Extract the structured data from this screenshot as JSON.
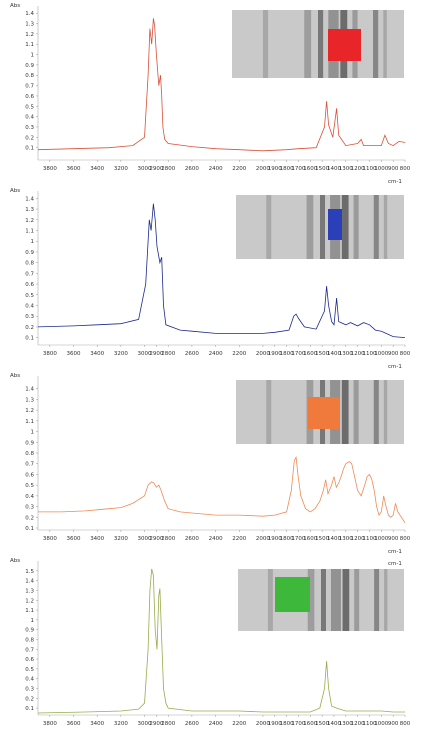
{
  "chart_data": [
    {
      "type": "line",
      "ylabel": "Abs",
      "xunit": "cm-1",
      "xlim": [
        3900,
        800
      ],
      "ylim": [
        0.0,
        1.45
      ],
      "yticks": [
        "0.1",
        "0.2",
        "0.3",
        "0.4",
        "0.5",
        "0.6",
        "0.7",
        "0.8",
        "0.9",
        "1",
        "1.1",
        "1.2",
        "1.3",
        "1.4"
      ],
      "xticks": [
        "3800",
        "3600",
        "3400",
        "3200",
        "3000",
        "2900",
        "2800",
        "2600",
        "2400",
        "2200",
        "2000",
        "1900",
        "1800",
        "1700",
        "1600",
        "1500",
        "1400",
        "1300",
        "1200",
        "1100",
        "1000",
        "900",
        "800"
      ],
      "series": [
        {
          "color": "#d9503a",
          "points": [
            [
              3900,
              0.08
            ],
            [
              3600,
              0.09
            ],
            [
              3300,
              0.1
            ],
            [
              3100,
              0.12
            ],
            [
              3000,
              0.2
            ],
            [
              2970,
              0.8
            ],
            [
              2955,
              1.25
            ],
            [
              2940,
              1.1
            ],
            [
              2925,
              1.35
            ],
            [
              2915,
              1.28
            ],
            [
              2900,
              1.0
            ],
            [
              2880,
              0.7
            ],
            [
              2865,
              0.8
            ],
            [
              2855,
              0.6
            ],
            [
              2845,
              0.3
            ],
            [
              2830,
              0.18
            ],
            [
              2800,
              0.14
            ],
            [
              2600,
              0.11
            ],
            [
              2400,
              0.09
            ],
            [
              2200,
              0.08
            ],
            [
              2000,
              0.07
            ],
            [
              1800,
              0.08
            ],
            [
              1700,
              0.09
            ],
            [
              1550,
              0.1
            ],
            [
              1480,
              0.3
            ],
            [
              1462,
              0.55
            ],
            [
              1445,
              0.32
            ],
            [
              1410,
              0.2
            ],
            [
              1378,
              0.48
            ],
            [
              1360,
              0.22
            ],
            [
              1300,
              0.12
            ],
            [
              1200,
              0.14
            ],
            [
              1170,
              0.18
            ],
            [
              1150,
              0.12
            ],
            [
              1000,
              0.12
            ],
            [
              970,
              0.22
            ],
            [
              940,
              0.14
            ],
            [
              900,
              0.12
            ],
            [
              850,
              0.16
            ],
            [
              800,
              0.15
            ]
          ]
        }
      ],
      "inset": {
        "marker_color": "#e8262a"
      }
    },
    {
      "type": "line",
      "ylabel": "Abs",
      "xunit": "cm-1",
      "xlim": [
        3900,
        800
      ],
      "ylim": [
        0.05,
        1.45
      ],
      "yticks": [
        "0.1",
        "0.2",
        "0.3",
        "0.4",
        "0.5",
        "0.6",
        "0.7",
        "0.8",
        "0.9",
        "1",
        "1.1",
        "1.2",
        "1.3",
        "1.4"
      ],
      "xticks": [
        "3800",
        "3600",
        "3400",
        "3200",
        "3000",
        "2900",
        "2800",
        "2600",
        "2400",
        "2200",
        "2000",
        "1900",
        "1800",
        "1700",
        "1600",
        "1500",
        "1400",
        "1300",
        "1200",
        "1100",
        "1000",
        "900",
        "800"
      ],
      "series": [
        {
          "color": "#1c2a8c",
          "points": [
            [
              3900,
              0.2
            ],
            [
              3600,
              0.21
            ],
            [
              3400,
              0.22
            ],
            [
              3200,
              0.23
            ],
            [
              3050,
              0.27
            ],
            [
              2990,
              0.6
            ],
            [
              2960,
              1.2
            ],
            [
              2945,
              1.1
            ],
            [
              2925,
              1.35
            ],
            [
              2910,
              1.2
            ],
            [
              2895,
              0.95
            ],
            [
              2870,
              0.8
            ],
            [
              2855,
              0.85
            ],
            [
              2840,
              0.4
            ],
            [
              2820,
              0.22
            ],
            [
              2700,
              0.17
            ],
            [
              2600,
              0.16
            ],
            [
              2400,
              0.14
            ],
            [
              2200,
              0.14
            ],
            [
              2000,
              0.14
            ],
            [
              1900,
              0.15
            ],
            [
              1780,
              0.17
            ],
            [
              1740,
              0.3
            ],
            [
              1720,
              0.32
            ],
            [
              1700,
              0.28
            ],
            [
              1650,
              0.2
            ],
            [
              1550,
              0.18
            ],
            [
              1480,
              0.35
            ],
            [
              1462,
              0.58
            ],
            [
              1445,
              0.4
            ],
            [
              1420,
              0.25
            ],
            [
              1400,
              0.22
            ],
            [
              1378,
              0.47
            ],
            [
              1360,
              0.25
            ],
            [
              1300,
              0.22
            ],
            [
              1260,
              0.24
            ],
            [
              1200,
              0.21
            ],
            [
              1150,
              0.24
            ],
            [
              1100,
              0.22
            ],
            [
              1050,
              0.17
            ],
            [
              1000,
              0.16
            ],
            [
              960,
              0.14
            ],
            [
              900,
              0.11
            ],
            [
              800,
              0.1
            ]
          ]
        }
      ],
      "inset": {
        "marker_color": "#2a3fb8"
      }
    },
    {
      "type": "line",
      "ylabel": "Abs",
      "xunit": "cm-1",
      "xlim": [
        3900,
        800
      ],
      "ylim": [
        0.1,
        1.5
      ],
      "yticks": [
        "0.1",
        "0.2",
        "0.3",
        "0.4",
        "0.5",
        "0.6",
        "0.7",
        "0.8",
        "0.9",
        "1",
        "1.1",
        "1.2",
        "1.3",
        "1.4"
      ],
      "xticks": [
        "3800",
        "3600",
        "3400",
        "3200",
        "3000",
        "2900",
        "2800",
        "2600",
        "2400",
        "2200",
        "2000",
        "1900",
        "1800",
        "1700",
        "1600",
        "1500",
        "1400",
        "1300",
        "1200",
        "1100",
        "1000",
        "900",
        "800"
      ],
      "series": [
        {
          "color": "#f08a54",
          "points": [
            [
              3900,
              0.25
            ],
            [
              3700,
              0.25
            ],
            [
              3500,
              0.26
            ],
            [
              3400,
              0.27
            ],
            [
              3300,
              0.28
            ],
            [
              3200,
              0.29
            ],
            [
              3100,
              0.33
            ],
            [
              3000,
              0.4
            ],
            [
              2970,
              0.5
            ],
            [
              2940,
              0.53
            ],
            [
              2920,
              0.52
            ],
            [
              2900,
              0.48
            ],
            [
              2880,
              0.5
            ],
            [
              2860,
              0.45
            ],
            [
              2830,
              0.35
            ],
            [
              2800,
              0.28
            ],
            [
              2700,
              0.25
            ],
            [
              2600,
              0.24
            ],
            [
              2400,
              0.22
            ],
            [
              2200,
              0.22
            ],
            [
              2000,
              0.21
            ],
            [
              1900,
              0.22
            ],
            [
              1800,
              0.25
            ],
            [
              1760,
              0.45
            ],
            [
              1735,
              0.73
            ],
            [
              1720,
              0.76
            ],
            [
              1705,
              0.6
            ],
            [
              1680,
              0.4
            ],
            [
              1640,
              0.28
            ],
            [
              1600,
              0.25
            ],
            [
              1560,
              0.28
            ],
            [
              1520,
              0.35
            ],
            [
              1490,
              0.45
            ],
            [
              1470,
              0.55
            ],
            [
              1450,
              0.42
            ],
            [
              1420,
              0.5
            ],
            [
              1400,
              0.58
            ],
            [
              1380,
              0.48
            ],
            [
              1360,
              0.52
            ],
            [
              1340,
              0.58
            ],
            [
              1320,
              0.65
            ],
            [
              1300,
              0.7
            ],
            [
              1270,
              0.72
            ],
            [
              1250,
              0.7
            ],
            [
              1230,
              0.6
            ],
            [
              1200,
              0.45
            ],
            [
              1170,
              0.4
            ],
            [
              1140,
              0.5
            ],
            [
              1120,
              0.58
            ],
            [
              1100,
              0.6
            ],
            [
              1080,
              0.55
            ],
            [
              1060,
              0.45
            ],
            [
              1040,
              0.3
            ],
            [
              1020,
              0.22
            ],
            [
              1000,
              0.25
            ],
            [
              980,
              0.4
            ],
            [
              965,
              0.32
            ],
            [
              940,
              0.22
            ],
            [
              920,
              0.2
            ],
            [
              900,
              0.22
            ],
            [
              880,
              0.33
            ],
            [
              860,
              0.25
            ],
            [
              830,
              0.2
            ],
            [
              800,
              0.15
            ]
          ]
        }
      ],
      "inset": {
        "marker_color": "#f07a3c"
      }
    },
    {
      "type": "line",
      "ylabel": "Abs",
      "xunit": "cm-1",
      "xlim": [
        3900,
        800
      ],
      "ylim": [
        0.05,
        1.58
      ],
      "yticks": [
        "0.1",
        "0.2",
        "0.3",
        "0.4",
        "0.5",
        "0.6",
        "0.7",
        "0.8",
        "0.9",
        "1",
        "1.1",
        "1.2",
        "1.3",
        "1.4",
        "1.5"
      ],
      "xticks": [
        "3800",
        "3600",
        "3400",
        "3200",
        "3000",
        "2900",
        "2800",
        "2600",
        "2400",
        "2200",
        "2000",
        "1900",
        "1800",
        "1700",
        "1600",
        "1500",
        "1400",
        "1300",
        "1200",
        "1100",
        "1000",
        "900",
        "800"
      ],
      "series": [
        {
          "color": "#96ad4c",
          "points": [
            [
              3900,
              0.05
            ],
            [
              3500,
              0.06
            ],
            [
              3200,
              0.07
            ],
            [
              3050,
              0.09
            ],
            [
              3000,
              0.15
            ],
            [
              2970,
              0.7
            ],
            [
              2955,
              1.3
            ],
            [
              2940,
              1.52
            ],
            [
              2925,
              1.45
            ],
            [
              2910,
              0.9
            ],
            [
              2895,
              0.7
            ],
            [
              2880,
              1.25
            ],
            [
              2870,
              1.32
            ],
            [
              2855,
              0.8
            ],
            [
              2840,
              0.3
            ],
            [
              2820,
              0.15
            ],
            [
              2800,
              0.1
            ],
            [
              2600,
              0.07
            ],
            [
              2400,
              0.07
            ],
            [
              2200,
              0.07
            ],
            [
              2000,
              0.06
            ],
            [
              1800,
              0.06
            ],
            [
              1600,
              0.06
            ],
            [
              1520,
              0.1
            ],
            [
              1480,
              0.3
            ],
            [
              1462,
              0.58
            ],
            [
              1445,
              0.3
            ],
            [
              1420,
              0.12
            ],
            [
              1378,
              0.1
            ],
            [
              1300,
              0.07
            ],
            [
              1200,
              0.07
            ],
            [
              1000,
              0.07
            ],
            [
              900,
              0.06
            ],
            [
              800,
              0.06
            ]
          ]
        }
      ],
      "inset": {
        "marker_color": "#3db83a"
      }
    }
  ]
}
